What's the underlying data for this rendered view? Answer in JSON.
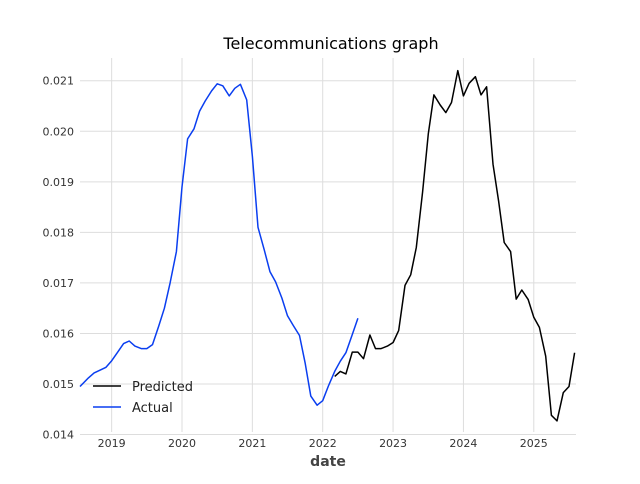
{
  "chart_data": {
    "type": "line",
    "title": "Telecommunications graph",
    "xlabel": "date",
    "ylabel": "",
    "xlim": [
      2018.55,
      2025.6
    ],
    "ylim": [
      0.01405,
      0.02145
    ],
    "xticks": [
      2019,
      2020,
      2021,
      2022,
      2023,
      2024,
      2025
    ],
    "xtick_labels": [
      "2019",
      "2020",
      "2021",
      "2022",
      "2023",
      "2024",
      "2025"
    ],
    "yticks": [
      0.014,
      0.015,
      0.016,
      0.017,
      0.018,
      0.019,
      0.02,
      0.021
    ],
    "ytick_labels": [
      "0.014",
      "0.015",
      "0.016",
      "0.017",
      "0.018",
      "0.019",
      "0.020",
      "0.021"
    ],
    "grid": true,
    "legend_position": "lower-left",
    "series": [
      {
        "name": "Predicted",
        "color": "#000000",
        "x": [
          2022.17,
          2022.25,
          2022.33,
          2022.42,
          2022.5,
          2022.58,
          2022.67,
          2022.75,
          2022.83,
          2022.92,
          2023.0,
          2023.08,
          2023.17,
          2023.25,
          2023.33,
          2023.42,
          2023.5,
          2023.58,
          2023.67,
          2023.75,
          2023.83,
          2023.92,
          2024.0,
          2024.08,
          2024.17,
          2024.25,
          2024.33,
          2024.42,
          2024.5,
          2024.58,
          2024.67,
          2024.75,
          2024.83,
          2024.92,
          2025.0,
          2025.08,
          2025.17,
          2025.25,
          2025.33,
          2025.42,
          2025.5,
          2025.58
        ],
        "y": [
          0.01515,
          0.01525,
          0.0152,
          0.01563,
          0.01563,
          0.0155,
          0.01597,
          0.0157,
          0.0157,
          0.01575,
          0.01582,
          0.01606,
          0.01695,
          0.01716,
          0.0177,
          0.0188,
          0.01995,
          0.02072,
          0.02052,
          0.02037,
          0.02057,
          0.0212,
          0.0207,
          0.02095,
          0.02108,
          0.02072,
          0.02088,
          0.01935,
          0.01862,
          0.0178,
          0.01762,
          0.01668,
          0.01686,
          0.01667,
          0.01632,
          0.01612,
          0.01555,
          0.01438,
          0.01427,
          0.01483,
          0.01495,
          0.01562
        ]
      },
      {
        "name": "Actual",
        "color": "#0a3ef0",
        "x": [
          2018.55,
          2018.67,
          2018.75,
          2018.83,
          2018.92,
          2019.0,
          2019.08,
          2019.17,
          2019.25,
          2019.33,
          2019.42,
          2019.5,
          2019.58,
          2019.67,
          2019.75,
          2019.83,
          2019.92,
          2020.0,
          2020.08,
          2020.17,
          2020.25,
          2020.33,
          2020.42,
          2020.5,
          2020.58,
          2020.67,
          2020.75,
          2020.83,
          2020.92,
          2021.0,
          2021.08,
          2021.17,
          2021.25,
          2021.33,
          2021.42,
          2021.5,
          2021.58,
          2021.67,
          2021.75,
          2021.83,
          2021.92,
          2022.0,
          2022.08,
          2022.17,
          2022.25,
          2022.33,
          2022.42,
          2022.5
        ],
        "y": [
          0.01495,
          0.01512,
          0.01522,
          0.01527,
          0.01533,
          0.01546,
          0.01562,
          0.0158,
          0.01585,
          0.01575,
          0.0157,
          0.0157,
          0.01578,
          0.01615,
          0.0165,
          0.017,
          0.01762,
          0.0189,
          0.01985,
          0.02005,
          0.0204,
          0.0206,
          0.0208,
          0.02094,
          0.0209,
          0.0207,
          0.02085,
          0.02093,
          0.02062,
          0.0195,
          0.0181,
          0.01765,
          0.01722,
          0.01702,
          0.0167,
          0.01635,
          0.01616,
          0.01596,
          0.01542,
          0.01476,
          0.01458,
          0.01467,
          0.01496,
          0.01525,
          0.01545,
          0.01562,
          0.01598,
          0.0163
        ]
      }
    ]
  }
}
